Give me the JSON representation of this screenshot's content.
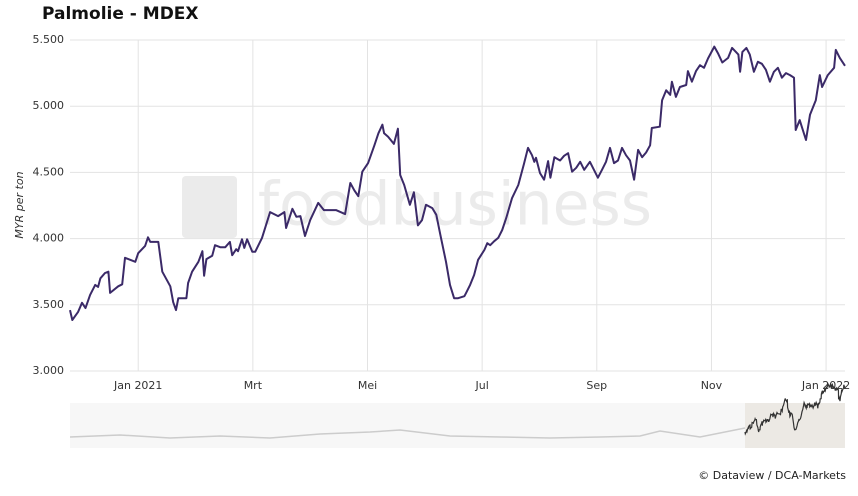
{
  "chart_data": {
    "type": "line",
    "title": "Palmolie - MDEX",
    "ylabel": "MYR per ton",
    "watermark": "foodbusiness",
    "credit": "© Dataview / DCA-Markets",
    "grid": true,
    "xlim": [
      -1.19,
      12.33
    ],
    "xticks": [
      {
        "value": 0,
        "label": "Jan 2021"
      },
      {
        "value": 2,
        "label": "Mrt"
      },
      {
        "value": 4,
        "label": "Mei"
      },
      {
        "value": 6,
        "label": "Jul"
      },
      {
        "value": 8,
        "label": "Sep"
      },
      {
        "value": 10,
        "label": "Nov"
      },
      {
        "value": 12,
        "label": "Jan 2022"
      }
    ],
    "ylim": [
      3000,
      5500
    ],
    "yticks": [
      {
        "value": 3000,
        "label": "3.000"
      },
      {
        "value": 3500,
        "label": "3.500"
      },
      {
        "value": 4000,
        "label": "4.000"
      },
      {
        "value": 4500,
        "label": "4.500"
      },
      {
        "value": 5000,
        "label": "5.000"
      },
      {
        "value": 5500,
        "label": "5.500"
      }
    ],
    "series": [
      {
        "color": "#3b2a68",
        "x": [
          -1.19,
          -1.15,
          -1.05,
          -0.98,
          -0.92,
          -0.84,
          -0.75,
          -0.7,
          -0.66,
          -0.58,
          -0.52,
          -0.49,
          -0.35,
          -0.28,
          -0.23,
          -0.14,
          -0.05,
          0,
          0.12,
          0.17,
          0.21,
          0.35,
          0.42,
          0.56,
          0.61,
          0.66,
          0.7,
          0.84,
          0.87,
          0.94,
          1.05,
          1.12,
          1.15,
          1.19,
          1.29,
          1.34,
          1.43,
          1.52,
          1.6,
          1.64,
          1.71,
          1.74,
          1.81,
          1.85,
          1.9,
          1.99,
          2.04,
          2.16,
          2.3,
          2.44,
          2.55,
          2.58,
          2.69,
          2.76,
          2.83,
          2.91,
          3.0,
          3.14,
          3.24,
          3.35,
          3.45,
          3.61,
          3.7,
          3.77,
          3.84,
          3.91,
          4.01,
          4.12,
          4.19,
          4.26,
          4.29,
          4.36,
          4.46,
          4.53,
          4.57,
          4.64,
          4.74,
          4.81,
          4.88,
          4.95,
          5.02,
          5.13,
          5.2,
          5.27,
          5.37,
          5.44,
          5.51,
          5.58,
          5.69,
          5.72,
          5.79,
          5.86,
          5.93,
          6.04,
          6.09,
          6.14,
          6.21,
          6.28,
          6.35,
          6.42,
          6.52,
          6.63,
          6.73,
          6.8,
          6.87,
          6.91,
          6.94,
          7.01,
          7.08,
          7.15,
          7.19,
          7.26,
          7.36,
          7.43,
          7.5,
          7.57,
          7.64,
          7.71,
          7.78,
          7.88,
          8.02,
          8.09,
          8.16,
          8.23,
          8.3,
          8.37,
          8.44,
          8.51,
          8.58,
          8.65,
          8.72,
          8.79,
          8.86,
          8.93,
          8.96,
          9.1,
          9.14,
          9.21,
          9.28,
          9.31,
          9.38,
          9.45,
          9.56,
          9.59,
          9.66,
          9.73,
          9.8,
          9.87,
          9.94,
          10.05,
          10.12,
          10.19,
          10.29,
          10.36,
          10.47,
          10.5,
          10.54,
          10.61,
          10.67,
          10.74,
          10.81,
          10.88,
          10.95,
          11.02,
          11.09,
          11.16,
          11.23,
          11.3,
          11.37,
          11.44,
          11.47,
          11.54,
          11.65,
          11.72,
          11.82,
          11.89,
          11.93,
          12.03,
          12.14,
          12.17,
          12.24,
          12.33
        ],
        "values": [
          3460,
          3385,
          3445,
          3515,
          3475,
          3575,
          3650,
          3635,
          3700,
          3740,
          3750,
          3590,
          3640,
          3655,
          3855,
          3840,
          3825,
          3890,
          3945,
          4010,
          3975,
          3975,
          3750,
          3640,
          3520,
          3460,
          3550,
          3550,
          3665,
          3750,
          3825,
          3905,
          3720,
          3845,
          3870,
          3950,
          3935,
          3935,
          3975,
          3875,
          3920,
          3905,
          3995,
          3930,
          3995,
          3900,
          3900,
          4005,
          4200,
          4170,
          4200,
          4080,
          4225,
          4165,
          4170,
          4020,
          4140,
          4270,
          4215,
          4215,
          4215,
          4185,
          4420,
          4365,
          4320,
          4505,
          4570,
          4705,
          4795,
          4860,
          4795,
          4770,
          4715,
          4830,
          4480,
          4405,
          4255,
          4350,
          4100,
          4140,
          4255,
          4230,
          4180,
          4030,
          3825,
          3650,
          3550,
          3550,
          3565,
          3590,
          3650,
          3725,
          3840,
          3915,
          3965,
          3950,
          3980,
          4005,
          4065,
          4155,
          4305,
          4405,
          4565,
          4685,
          4630,
          4580,
          4610,
          4495,
          4445,
          4585,
          4460,
          4615,
          4590,
          4625,
          4645,
          4505,
          4535,
          4580,
          4520,
          4580,
          4460,
          4520,
          4580,
          4685,
          4570,
          4590,
          4685,
          4630,
          4590,
          4445,
          4670,
          4615,
          4650,
          4705,
          4835,
          4845,
          5045,
          5120,
          5085,
          5185,
          5070,
          5145,
          5160,
          5265,
          5185,
          5265,
          5310,
          5290,
          5360,
          5450,
          5395,
          5330,
          5365,
          5440,
          5390,
          5260,
          5410,
          5440,
          5390,
          5260,
          5335,
          5320,
          5275,
          5185,
          5260,
          5290,
          5215,
          5250,
          5235,
          5215,
          4820,
          4895,
          4745,
          4935,
          5045,
          5235,
          5145,
          5235,
          5290,
          5425,
          5365,
          5305
        ]
      }
    ]
  }
}
